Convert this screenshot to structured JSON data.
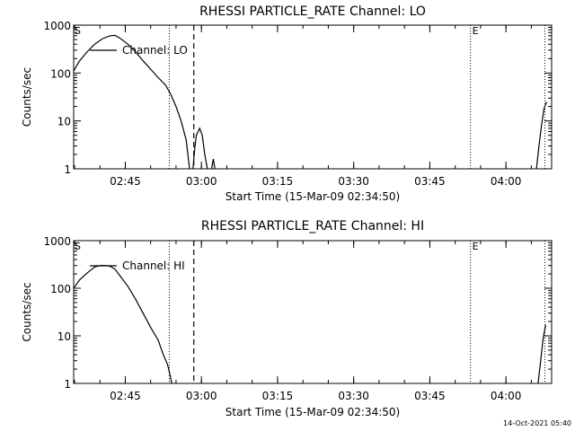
{
  "footer": {
    "timestamp": "14-Oct-2021 05:40"
  },
  "chart_data": [
    {
      "type": "line",
      "title": "RHESSI PARTICLE_RATE Channel: LO",
      "xlabel": "Start Time (15-Mar-09 02:34:50)",
      "ylabel": "Counts/sec",
      "yscale": "log",
      "xlim": [
        "02:34:50",
        "04:09:00"
      ],
      "ylim": [
        1,
        1000
      ],
      "x_ticks": [
        "02:45",
        "03:00",
        "03:15",
        "03:30",
        "03:45",
        "04:00"
      ],
      "y_ticks": [
        "1",
        "10",
        "100",
        "1000"
      ],
      "legend": "Channel: LO",
      "markers": {
        "start": "S",
        "end": "E"
      },
      "vlines": [
        {
          "style": "dotted",
          "x": "02:53:40"
        },
        {
          "style": "dashed",
          "x": "02:58:30"
        },
        {
          "style": "dotted",
          "x": "03:53:00"
        },
        {
          "style": "dotted",
          "x": "04:07:40"
        }
      ],
      "series": [
        {
          "segments": [
            {
              "x": [
                "02:34:50",
                "02:36:00",
                "02:37:30",
                "02:39:00",
                "02:40:30",
                "02:42:00",
                "02:43:00",
                "02:44:00",
                "02:45:30",
                "02:47:00",
                "02:48:30",
                "02:50:00",
                "02:51:30",
                "02:53:00",
                "02:54:00",
                "02:55:00",
                "02:56:00",
                "02:57:00",
                "02:57:40"
              ],
              "y": [
                110,
                180,
                280,
                400,
                520,
                600,
                610,
                530,
                400,
                280,
                180,
                120,
                80,
                55,
                35,
                20,
                10,
                4,
                1
              ]
            },
            {
              "x": [
                "02:58:20",
                "02:58:40",
                "02:59:00",
                "02:59:40",
                "03:00:10",
                "03:00:40",
                "03:01:10"
              ],
              "y": [
                1,
                2.5,
                5,
                7,
                5,
                2,
                1
              ]
            },
            {
              "x": [
                "03:02:00",
                "03:02:20",
                "03:02:40"
              ],
              "y": [
                1,
                1.6,
                1
              ]
            },
            {
              "x": [
                "04:06:00",
                "04:06:30",
                "04:07:00",
                "04:07:30",
                "04:08:00"
              ],
              "y": [
                1,
                3,
                8,
                18,
                25
              ]
            }
          ]
        }
      ]
    },
    {
      "type": "line",
      "title": "RHESSI PARTICLE_RATE Channel: HI",
      "xlabel": "Start Time (15-Mar-09 02:34:50)",
      "ylabel": "Counts/sec",
      "yscale": "log",
      "xlim": [
        "02:34:50",
        "04:09:00"
      ],
      "ylim": [
        1,
        1000
      ],
      "x_ticks": [
        "02:45",
        "03:00",
        "03:15",
        "03:30",
        "03:45",
        "04:00"
      ],
      "y_ticks": [
        "1",
        "10",
        "100",
        "1000"
      ],
      "legend": "Channel: HI",
      "markers": {
        "start": "S",
        "end": "E"
      },
      "vlines": [
        {
          "style": "dotted",
          "x": "02:53:40"
        },
        {
          "style": "dashed",
          "x": "02:58:30"
        },
        {
          "style": "dotted",
          "x": "03:53:00"
        },
        {
          "style": "dotted",
          "x": "04:07:40"
        }
      ],
      "series": [
        {
          "segments": [
            {
              "x": [
                "02:34:50",
                "02:36:00",
                "02:37:30",
                "02:39:00",
                "02:40:00",
                "02:41:00",
                "02:42:00",
                "02:43:00",
                "02:44:00",
                "02:45:30",
                "02:47:00",
                "02:48:30",
                "02:50:00",
                "02:51:30",
                "02:52:30",
                "02:53:20",
                "02:53:50",
                "02:54:10"
              ],
              "y": [
                100,
                150,
                210,
                280,
                300,
                300,
                290,
                250,
                180,
                110,
                60,
                30,
                15,
                8,
                4,
                2.5,
                1.5,
                1
              ]
            },
            {
              "x": [
                "04:06:20",
                "04:06:50",
                "04:07:20",
                "04:07:50"
              ],
              "y": [
                1,
                3,
                9,
                17
              ]
            }
          ]
        }
      ]
    }
  ]
}
